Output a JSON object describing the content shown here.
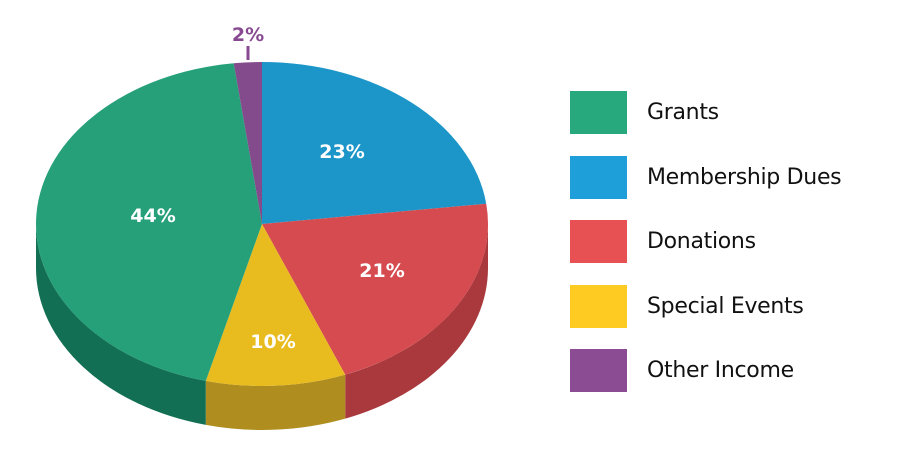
{
  "chart_data": {
    "type": "pie",
    "style": "3d",
    "title": "",
    "categories": [
      "Grants",
      "Membership Dues",
      "Donations",
      "Special Events",
      "Other Income"
    ],
    "values": [
      44,
      23,
      21,
      10,
      2
    ],
    "value_labels": [
      "44%",
      "23%",
      "21%",
      "10%",
      "2%"
    ],
    "colors": [
      "#25a079",
      "#1c96c8",
      "#d64b4f",
      "#e8bb1f",
      "#834b8b"
    ],
    "legend_position": "right",
    "annotations": [
      {
        "label": "2%",
        "type": "callout",
        "target": "Other Income"
      }
    ]
  },
  "legend": {
    "items": [
      {
        "label": "Grants",
        "color": "#27a97d"
      },
      {
        "label": "Membership Dues",
        "color": "#1f9fd9"
      },
      {
        "label": "Donations",
        "color": "#e85154"
      },
      {
        "label": "Special Events",
        "color": "#fdcb22"
      },
      {
        "label": "Other Income",
        "color": "#8b4c94"
      }
    ]
  },
  "slices": [
    {
      "label": "Membership Dues",
      "value_label": "23%",
      "top": "#1c96c8",
      "side": "#166f96"
    },
    {
      "label": "Donations",
      "value_label": "21%",
      "top": "#d64b4f",
      "side": "#a9393d"
    },
    {
      "label": "Special Events",
      "value_label": "10%",
      "top": "#e8bb1f",
      "side": "#af8e1f"
    },
    {
      "label": "Grants",
      "value_label": "44%",
      "top": "#25a079",
      "side": "#126f53"
    },
    {
      "label": "Other Income",
      "value_label": "2%",
      "top": "#834b8b",
      "side": "#5f3566"
    }
  ]
}
